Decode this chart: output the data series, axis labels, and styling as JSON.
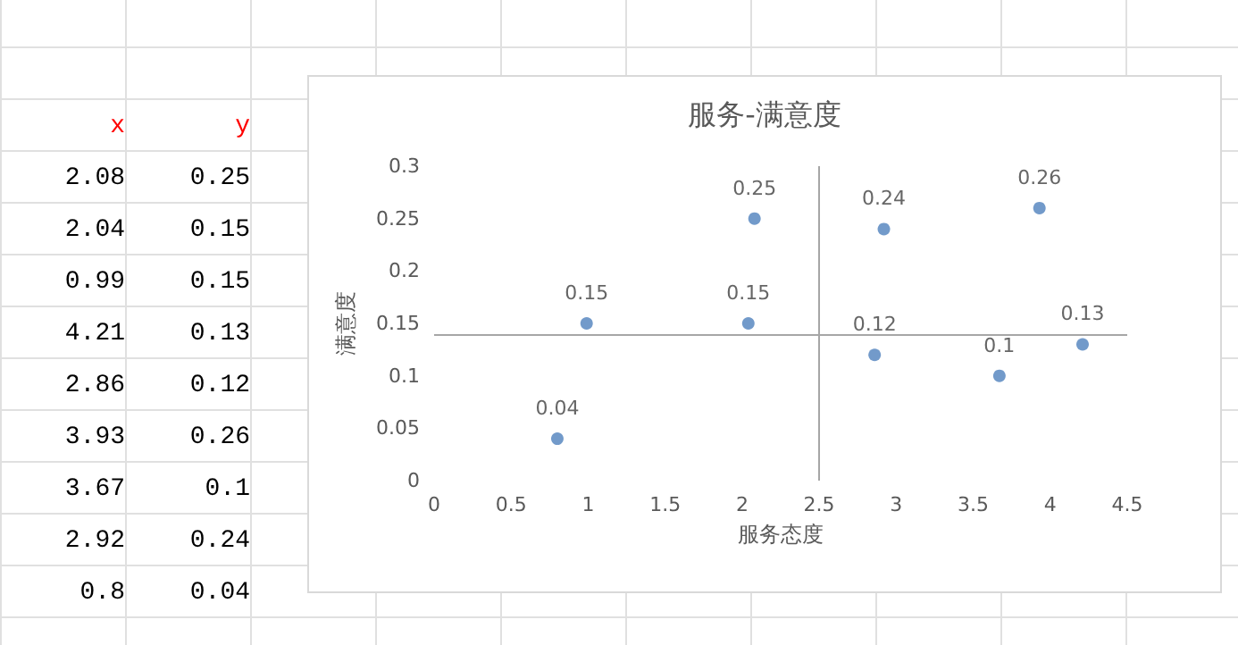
{
  "chart_data": [
    {
      "type": "other",
      "annotations": [
        "x",
        "y",
        "2.08",
        "0.25",
        "2.04",
        "0.15",
        "0.99",
        "0.15",
        "4.21",
        "0.13",
        "2.86",
        "0.12",
        "3.93",
        "0.26",
        "3.67",
        "0.1",
        "2.92",
        "0.24",
        "0.8",
        "0.04"
      ]
    },
    {
      "type": "scatter",
      "title": "服务-满意度",
      "xlabel": "服务态度",
      "ylabel": "满意度",
      "x": [
        2.08,
        2.04,
        0.99,
        4.21,
        2.86,
        3.93,
        3.67,
        2.92,
        0.8
      ],
      "values": [
        0.25,
        0.15,
        0.15,
        0.13,
        0.12,
        0.26,
        0.1,
        0.24,
        0.04
      ],
      "color": "#4f81bd",
      "marker": "circle",
      "data_labels": true,
      "grid": false,
      "xlim": [
        0,
        4.5
      ],
      "xticks": [
        0,
        0.5,
        1,
        1.5,
        2,
        2.5,
        3,
        3.5,
        4,
        4.5
      ],
      "ylim": [
        0,
        0.3
      ],
      "yticks": [
        0,
        0.05,
        0.1,
        0.15,
        0.2,
        0.25,
        0.3
      ],
      "ref_lines": [
        {
          "axis": "x",
          "value": 2.5,
          "color": "#a6a6a6"
        },
        {
          "axis": "y",
          "value": 0.14,
          "color": "#a6a6a6"
        }
      ]
    }
  ]
}
